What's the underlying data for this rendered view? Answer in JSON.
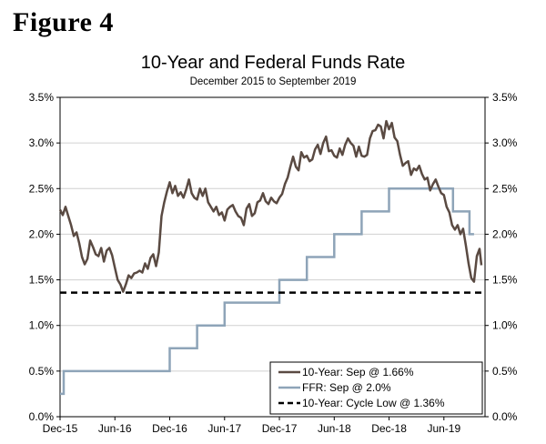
{
  "figure_label": "Figure 4",
  "chart_data": {
    "type": "line",
    "title": "10-Year and Federal Funds Rate",
    "subtitle": "December 2015 to September 2019",
    "xlabel": "",
    "ylabel": "",
    "ylim": [
      0,
      3.5
    ],
    "y_ticks": [
      "0.0%",
      "0.5%",
      "1.0%",
      "1.5%",
      "2.0%",
      "2.5%",
      "3.0%",
      "3.5%"
    ],
    "x_range_months": [
      0,
      46.5
    ],
    "x_ticks": [
      {
        "label": "Dec-15",
        "month": 0
      },
      {
        "label": "Jun-16",
        "month": 6
      },
      {
        "label": "Dec-16",
        "month": 12
      },
      {
        "label": "Jun-17",
        "month": 18
      },
      {
        "label": "Dec-17",
        "month": 24
      },
      {
        "label": "Jun-18",
        "month": 30
      },
      {
        "label": "Dec-18",
        "month": 36
      },
      {
        "label": "Jun-19",
        "month": 42
      }
    ],
    "colors": {
      "ten_year": "#5a4a42",
      "ffr": "#8ea4b8",
      "cycle_low": "#000000"
    },
    "series": [
      {
        "name": "10-Year",
        "legend": "10-Year: Sep @ 1.66%",
        "x": [
          0,
          0.3,
          0.6,
          0.9,
          1.2,
          1.5,
          1.8,
          2.1,
          2.4,
          2.7,
          3.0,
          3.3,
          3.6,
          3.9,
          4.2,
          4.5,
          4.8,
          5.1,
          5.4,
          5.7,
          6.0,
          6.3,
          6.6,
          6.9,
          7.2,
          7.5,
          7.8,
          8.1,
          8.4,
          8.7,
          9.0,
          9.3,
          9.6,
          9.9,
          10.2,
          10.5,
          10.8,
          11.1,
          11.4,
          11.7,
          12.0,
          12.3,
          12.6,
          12.9,
          13.2,
          13.5,
          13.8,
          14.1,
          14.4,
          14.7,
          15.0,
          15.3,
          15.6,
          15.9,
          16.2,
          16.5,
          16.8,
          17.1,
          17.4,
          17.7,
          18.0,
          18.3,
          18.6,
          18.9,
          19.2,
          19.5,
          19.8,
          20.1,
          20.4,
          20.7,
          21.0,
          21.3,
          21.6,
          21.9,
          22.2,
          22.5,
          22.8,
          23.1,
          23.4,
          23.7,
          24.0,
          24.3,
          24.6,
          24.9,
          25.2,
          25.5,
          25.8,
          26.1,
          26.4,
          26.7,
          27.0,
          27.3,
          27.6,
          27.9,
          28.2,
          28.5,
          28.8,
          29.1,
          29.4,
          29.7,
          30.0,
          30.3,
          30.6,
          30.9,
          31.2,
          31.5,
          31.8,
          32.1,
          32.4,
          32.7,
          33.0,
          33.3,
          33.6,
          33.9,
          34.2,
          34.5,
          34.8,
          35.1,
          35.4,
          35.7,
          36.0,
          36.3,
          36.6,
          36.9,
          37.2,
          37.5,
          37.8,
          38.1,
          38.4,
          38.7,
          39.0,
          39.3,
          39.6,
          39.9,
          40.2,
          40.5,
          40.8,
          41.1,
          41.4,
          41.7,
          42.0,
          42.3,
          42.6,
          42.9,
          43.2,
          43.5,
          43.8,
          44.1,
          44.4,
          44.7,
          45.0,
          45.3,
          45.6,
          45.9,
          46.1
        ],
        "values": [
          2.27,
          2.21,
          2.3,
          2.2,
          2.1,
          1.98,
          2.02,
          1.9,
          1.75,
          1.67,
          1.73,
          1.93,
          1.86,
          1.78,
          1.76,
          1.85,
          1.7,
          1.82,
          1.85,
          1.77,
          1.63,
          1.5,
          1.45,
          1.37,
          1.45,
          1.55,
          1.52,
          1.57,
          1.58,
          1.6,
          1.58,
          1.68,
          1.62,
          1.74,
          1.78,
          1.65,
          1.8,
          2.2,
          2.35,
          2.47,
          2.57,
          2.45,
          2.53,
          2.42,
          2.46,
          2.4,
          2.49,
          2.6,
          2.45,
          2.4,
          2.38,
          2.5,
          2.42,
          2.5,
          2.35,
          2.3,
          2.25,
          2.3,
          2.21,
          2.24,
          2.15,
          2.27,
          2.3,
          2.32,
          2.25,
          2.2,
          2.18,
          2.1,
          2.28,
          2.33,
          2.2,
          2.23,
          2.35,
          2.37,
          2.45,
          2.36,
          2.33,
          2.4,
          2.36,
          2.34,
          2.4,
          2.44,
          2.55,
          2.62,
          2.74,
          2.85,
          2.74,
          2.7,
          2.9,
          2.84,
          2.86,
          2.8,
          2.82,
          2.93,
          2.98,
          2.88,
          3.0,
          3.07,
          2.91,
          2.92,
          2.86,
          2.84,
          2.94,
          2.87,
          2.98,
          3.05,
          3.0,
          2.97,
          2.85,
          2.96,
          2.86,
          2.85,
          2.87,
          3.05,
          3.13,
          3.14,
          3.2,
          3.18,
          3.05,
          3.24,
          3.15,
          3.22,
          3.06,
          3.02,
          2.87,
          2.75,
          2.78,
          2.8,
          2.65,
          2.72,
          2.7,
          2.75,
          2.66,
          2.6,
          2.62,
          2.48,
          2.55,
          2.6,
          2.52,
          2.45,
          2.43,
          2.3,
          2.24,
          2.1,
          2.05,
          2.1,
          2.0,
          2.06,
          1.88,
          1.68,
          1.52,
          1.48,
          1.76,
          1.84,
          1.66
        ]
      },
      {
        "name": "FFR",
        "legend": "FFR: Sep @ 2.0%",
        "x": [
          0,
          0.2,
          0.4,
          12.0,
          15.0,
          18.0,
          24.0,
          27.0,
          30.0,
          33.0,
          36.0,
          43.0,
          44.8,
          45.3
        ],
        "values": [
          0.25,
          0.25,
          0.5,
          0.75,
          1.0,
          1.25,
          1.5,
          1.75,
          2.0,
          2.25,
          2.5,
          2.25,
          2.0,
          2.0
        ]
      },
      {
        "name": "10-Year: Cycle Low",
        "legend": "10-Year: Cycle Low @ 1.36%",
        "x": [
          0,
          46.1
        ],
        "values": [
          1.36,
          1.36
        ]
      }
    ]
  }
}
